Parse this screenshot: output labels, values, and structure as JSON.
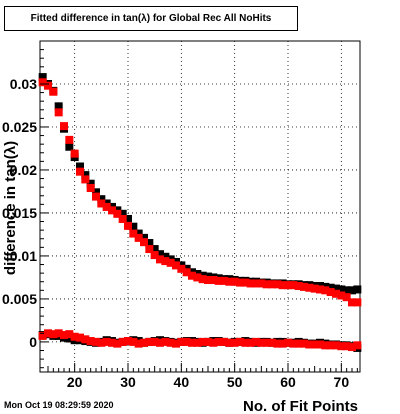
{
  "title": "Fitted difference in tan(λ) for Global Rec All NoHits",
  "timestamp": "Mon Oct 19 08:29:59 2020",
  "chart_data": {
    "type": "scatter",
    "title": "Fitted difference in tan(λ) for Global Rec All NoHits",
    "xlabel": "No. of Fit Points",
    "ylabel": "difference in tan(λ)",
    "xlim": [
      13.5,
      73.5
    ],
    "ylim": [
      -0.0035,
      0.035
    ],
    "grid": true,
    "x_ticks": [
      "20",
      "30",
      "40",
      "50",
      "60",
      "70"
    ],
    "y_ticks": [
      "0",
      "0.005",
      "0.01",
      "0.015",
      "0.02",
      "0.025",
      "0.03"
    ],
    "x_ticks_values": [
      20,
      30,
      40,
      50,
      60,
      70
    ],
    "y_ticks_values": [
      0,
      0.005,
      0.01,
      0.015,
      0.02,
      0.025,
      0.03
    ],
    "x": [
      14,
      15,
      16,
      17,
      18,
      19,
      20,
      21,
      22,
      23,
      24,
      25,
      26,
      27,
      28,
      29,
      30,
      31,
      32,
      33,
      34,
      35,
      36,
      37,
      38,
      39,
      40,
      41,
      42,
      43,
      44,
      45,
      46,
      47,
      48,
      49,
      50,
      51,
      52,
      53,
      54,
      55,
      56,
      57,
      58,
      59,
      60,
      61,
      62,
      63,
      64,
      65,
      66,
      67,
      68,
      69,
      70,
      71,
      72,
      73
    ],
    "series": [
      {
        "color": "#000000",
        "values": [
          0.0308,
          0.03,
          0.0292,
          0.0274,
          0.0248,
          0.0227,
          0.0215,
          0.0204,
          0.0194,
          0.0184,
          0.0174,
          0.0166,
          0.0161,
          0.0157,
          0.0153,
          0.0149,
          0.0143,
          0.0134,
          0.0126,
          0.0121,
          0.0115,
          0.0108,
          0.0102,
          0.0099,
          0.0096,
          0.0093,
          0.0089,
          0.0085,
          0.0081,
          0.0079,
          0.0077,
          0.0076,
          0.0075,
          0.0074,
          0.0073,
          0.0073,
          0.0072,
          0.0071,
          0.0071,
          0.007,
          0.007,
          0.0069,
          0.0069,
          0.0068,
          0.0068,
          0.0068,
          0.0067,
          0.0067,
          0.0067,
          0.0066,
          0.0066,
          0.0065,
          0.0065,
          0.0064,
          0.0063,
          0.0062,
          0.0061,
          0.006,
          0.006,
          0.0061
        ]
      },
      {
        "color": "#ff0000",
        "values": [
          0.0302,
          0.0298,
          0.0291,
          0.0267,
          0.0251,
          0.0235,
          0.0219,
          0.0198,
          0.0189,
          0.0179,
          0.0169,
          0.0161,
          0.0157,
          0.0153,
          0.0149,
          0.0143,
          0.0135,
          0.0126,
          0.0121,
          0.0116,
          0.0108,
          0.0101,
          0.0096,
          0.0094,
          0.0092,
          0.0089,
          0.0085,
          0.0081,
          0.0077,
          0.0075,
          0.0073,
          0.0072,
          0.0072,
          0.0071,
          0.0071,
          0.007,
          0.007,
          0.0069,
          0.0069,
          0.0068,
          0.0068,
          0.0068,
          0.0067,
          0.0067,
          0.0067,
          0.0066,
          0.0066,
          0.0066,
          0.0065,
          0.0064,
          0.0063,
          0.0062,
          0.0061,
          0.006,
          0.0058,
          0.0056,
          0.0054,
          0.0052,
          0.0046,
          0.0046
        ]
      },
      {
        "color": "#000000",
        "values": [
          0.0008,
          0.0009,
          0.0007,
          0.0007,
          0.0005,
          0.0004,
          0.0002,
          0.0002,
          0.0001,
          0.0,
          -0.0001,
          0.0,
          0.0002,
          0.0001,
          -0.0001,
          0.0,
          0.0001,
          0.0002,
          0.0001,
          -0.0001,
          0.0,
          0.0001,
          0.0002,
          0.0001,
          0.0,
          -0.0001,
          0.0,
          0.0001,
          0.0001,
          0.0,
          -0.0001,
          0.0,
          0.0001,
          0.0001,
          0.0,
          -0.0001,
          0.0,
          0.0,
          0.0001,
          0.0,
          -0.0001,
          0.0,
          0.0,
          -0.0001,
          0.0,
          0.0,
          -0.0001,
          -0.0001,
          0.0,
          -0.0001,
          -0.0002,
          -0.0002,
          -0.0001,
          -0.0002,
          -0.0003,
          -0.0003,
          -0.0004,
          -0.0004,
          -0.0005,
          -0.0007
        ]
      },
      {
        "color": "#ff0000",
        "values": [
          0.0007,
          0.001,
          0.0009,
          0.001,
          0.0008,
          0.0009,
          0.0006,
          0.0005,
          0.0003,
          0.0001,
          0.0,
          -0.0001,
          0.0,
          -0.0001,
          -0.0002,
          0.0,
          0.0001,
          0.0,
          -0.0002,
          -0.0001,
          0.0,
          0.0,
          -0.0001,
          0.0,
          -0.0001,
          -0.0002,
          0.0,
          0.0,
          -0.0001,
          -0.0001,
          0.0,
          0.0,
          -0.0001,
          0.0,
          0.0,
          -0.0001,
          -0.0001,
          0.0,
          -0.0001,
          -0.0001,
          0.0,
          -0.0001,
          -0.0001,
          -0.0001,
          -0.0002,
          -0.0002,
          -0.0001,
          -0.0002,
          -0.0002,
          -0.0002,
          -0.0003,
          -0.0003,
          -0.0003,
          -0.0004,
          -0.0004,
          -0.0004,
          -0.0005,
          -0.0005,
          -0.0006,
          -0.0004
        ]
      }
    ]
  }
}
